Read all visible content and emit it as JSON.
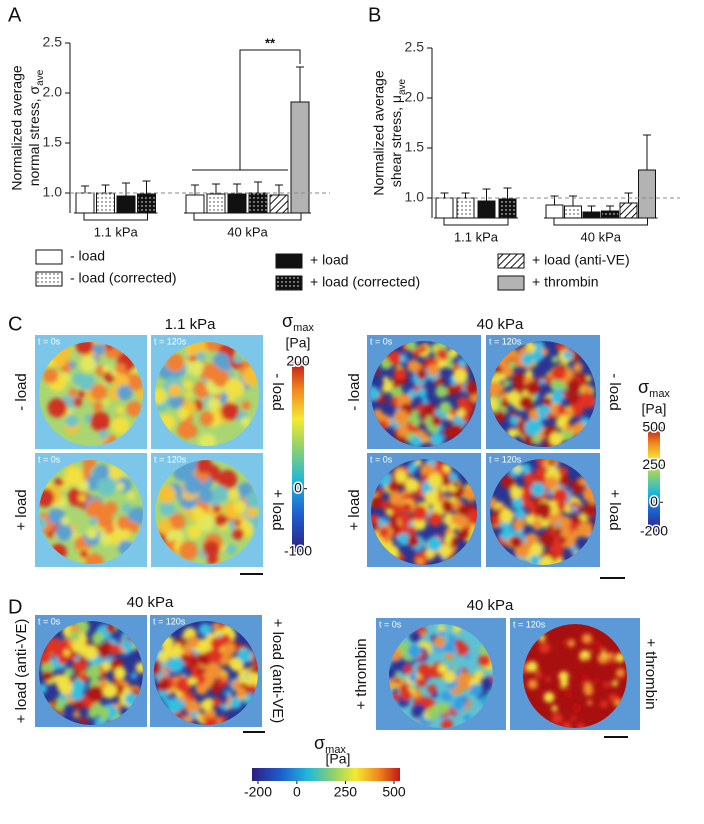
{
  "panel_labels": [
    "A",
    "B",
    "C",
    "D"
  ],
  "chart_data": [
    {
      "type": "bar",
      "ylabel": [
        "Normalized average",
        "normal stress, σ"
      ],
      "ylabel_subscript": "ave",
      "categories": [
        "1.1 kPa",
        "40 kPa"
      ],
      "ylim": [
        0.8,
        2.5
      ],
      "yticks": [
        {
          "value": 1,
          "label": "1.0"
        },
        1.5,
        {
          "value": 2,
          "label": "2.0"
        },
        2.5
      ],
      "reference_line": 1,
      "annotation": "**",
      "legend": "bottom",
      "series": [
        {
          "name": "- load",
          "pattern": "open",
          "color": "#ffffff",
          "values": [
            1.0,
            0.98
          ],
          "errors": [
            0.07,
            0.1
          ]
        },
        {
          "name": "- load (corrected)",
          "pattern": "dots",
          "color": "#ffffff",
          "values": [
            1.0,
            0.99
          ],
          "errors": [
            0.08,
            0.1
          ]
        },
        {
          "name": "+ load",
          "pattern": "solid",
          "color": "#111111",
          "values": [
            0.97,
            0.99
          ],
          "errors": [
            0.13,
            0.1
          ]
        },
        {
          "name": "+ load (corrected)",
          "pattern": "solid-dots",
          "color": "#111111",
          "values": [
            0.99,
            1.0
          ],
          "errors": [
            0.13,
            0.11
          ]
        },
        {
          "name": "+ load (anti-VE)",
          "pattern": "hatch",
          "color": "#ffffff",
          "values": [
            null,
            0.98
          ],
          "errors": [
            null,
            0.1
          ]
        },
        {
          "name": "+ thrombin",
          "pattern": "gray",
          "color": "#b3b3b3",
          "values": [
            null,
            1.91
          ],
          "errors": [
            null,
            0.35
          ]
        }
      ]
    },
    {
      "type": "bar",
      "ylabel": [
        "Normalized average",
        "shear stress, μ"
      ],
      "ylabel_subscript": "ave",
      "categories": [
        "1.1 kPa",
        "40 kPa"
      ],
      "ylim": [
        0.8,
        2.5
      ],
      "yticks": [
        {
          "value": 1,
          "label": "1.0"
        },
        1.5,
        {
          "value": 2,
          "label": "2.0"
        },
        2.5
      ],
      "reference_line": 1,
      "series": [
        {
          "pattern": "open",
          "color": "#ffffff",
          "values": [
            1.0,
            0.93
          ],
          "errors": [
            0.05,
            0.09
          ]
        },
        {
          "pattern": "dots",
          "color": "#ffffff",
          "values": [
            1.0,
            0.92
          ],
          "errors": [
            0.05,
            0.1
          ]
        },
        {
          "pattern": "solid",
          "color": "#111111",
          "values": [
            0.97,
            0.86
          ],
          "errors": [
            0.12,
            0.06
          ]
        },
        {
          "pattern": "solid-dots",
          "color": "#111111",
          "values": [
            0.99,
            0.87
          ],
          "errors": [
            0.11,
            0.05
          ]
        },
        {
          "pattern": "hatch",
          "color": "#ffffff",
          "values": [
            null,
            0.95
          ],
          "errors": [
            null,
            0.1
          ]
        },
        {
          "pattern": "gray",
          "color": "#b3b3b3",
          "values": [
            null,
            1.28
          ],
          "errors": [
            null,
            0.35
          ]
        }
      ]
    }
  ],
  "panel_c": {
    "maps": [
      {
        "title": "1.1 kPa",
        "times": [
          "t = 0s",
          "t = 120s"
        ],
        "rows": [
          "- load",
          "+ load"
        ],
        "colorbar": {
          "symbol": "σ",
          "subscript": "max",
          "unit": "[Pa]",
          "lim": [
            -100,
            200
          ],
          "ticks": [
            200,
            0,
            -100
          ]
        }
      },
      {
        "title": "40 kPa",
        "times": [
          "t = 0s",
          "t = 120s"
        ],
        "rows": [
          "- load",
          "+ load"
        ],
        "colorbar": {
          "symbol": "σ",
          "subscript": "max",
          "unit": "[Pa]",
          "lim": [
            -200,
            500
          ],
          "ticks": [
            500,
            250,
            0,
            -200
          ]
        }
      }
    ]
  },
  "panel_d": {
    "maps": [
      {
        "title": "40 kPa",
        "times": [
          "t = 0s",
          "t = 120s"
        ],
        "rows": [
          "+ load (anti-VE)"
        ]
      },
      {
        "title": "40 kPa",
        "times": [
          "t = 0s",
          "t = 120s"
        ],
        "rows": [
          "+ thrombin"
        ]
      }
    ],
    "colorbar": {
      "symbol": "σ",
      "subscript": "max",
      "unit": "[Pa]",
      "lim": [
        -200,
        500
      ],
      "ticks": [
        -200,
        0,
        250,
        500
      ]
    }
  }
}
